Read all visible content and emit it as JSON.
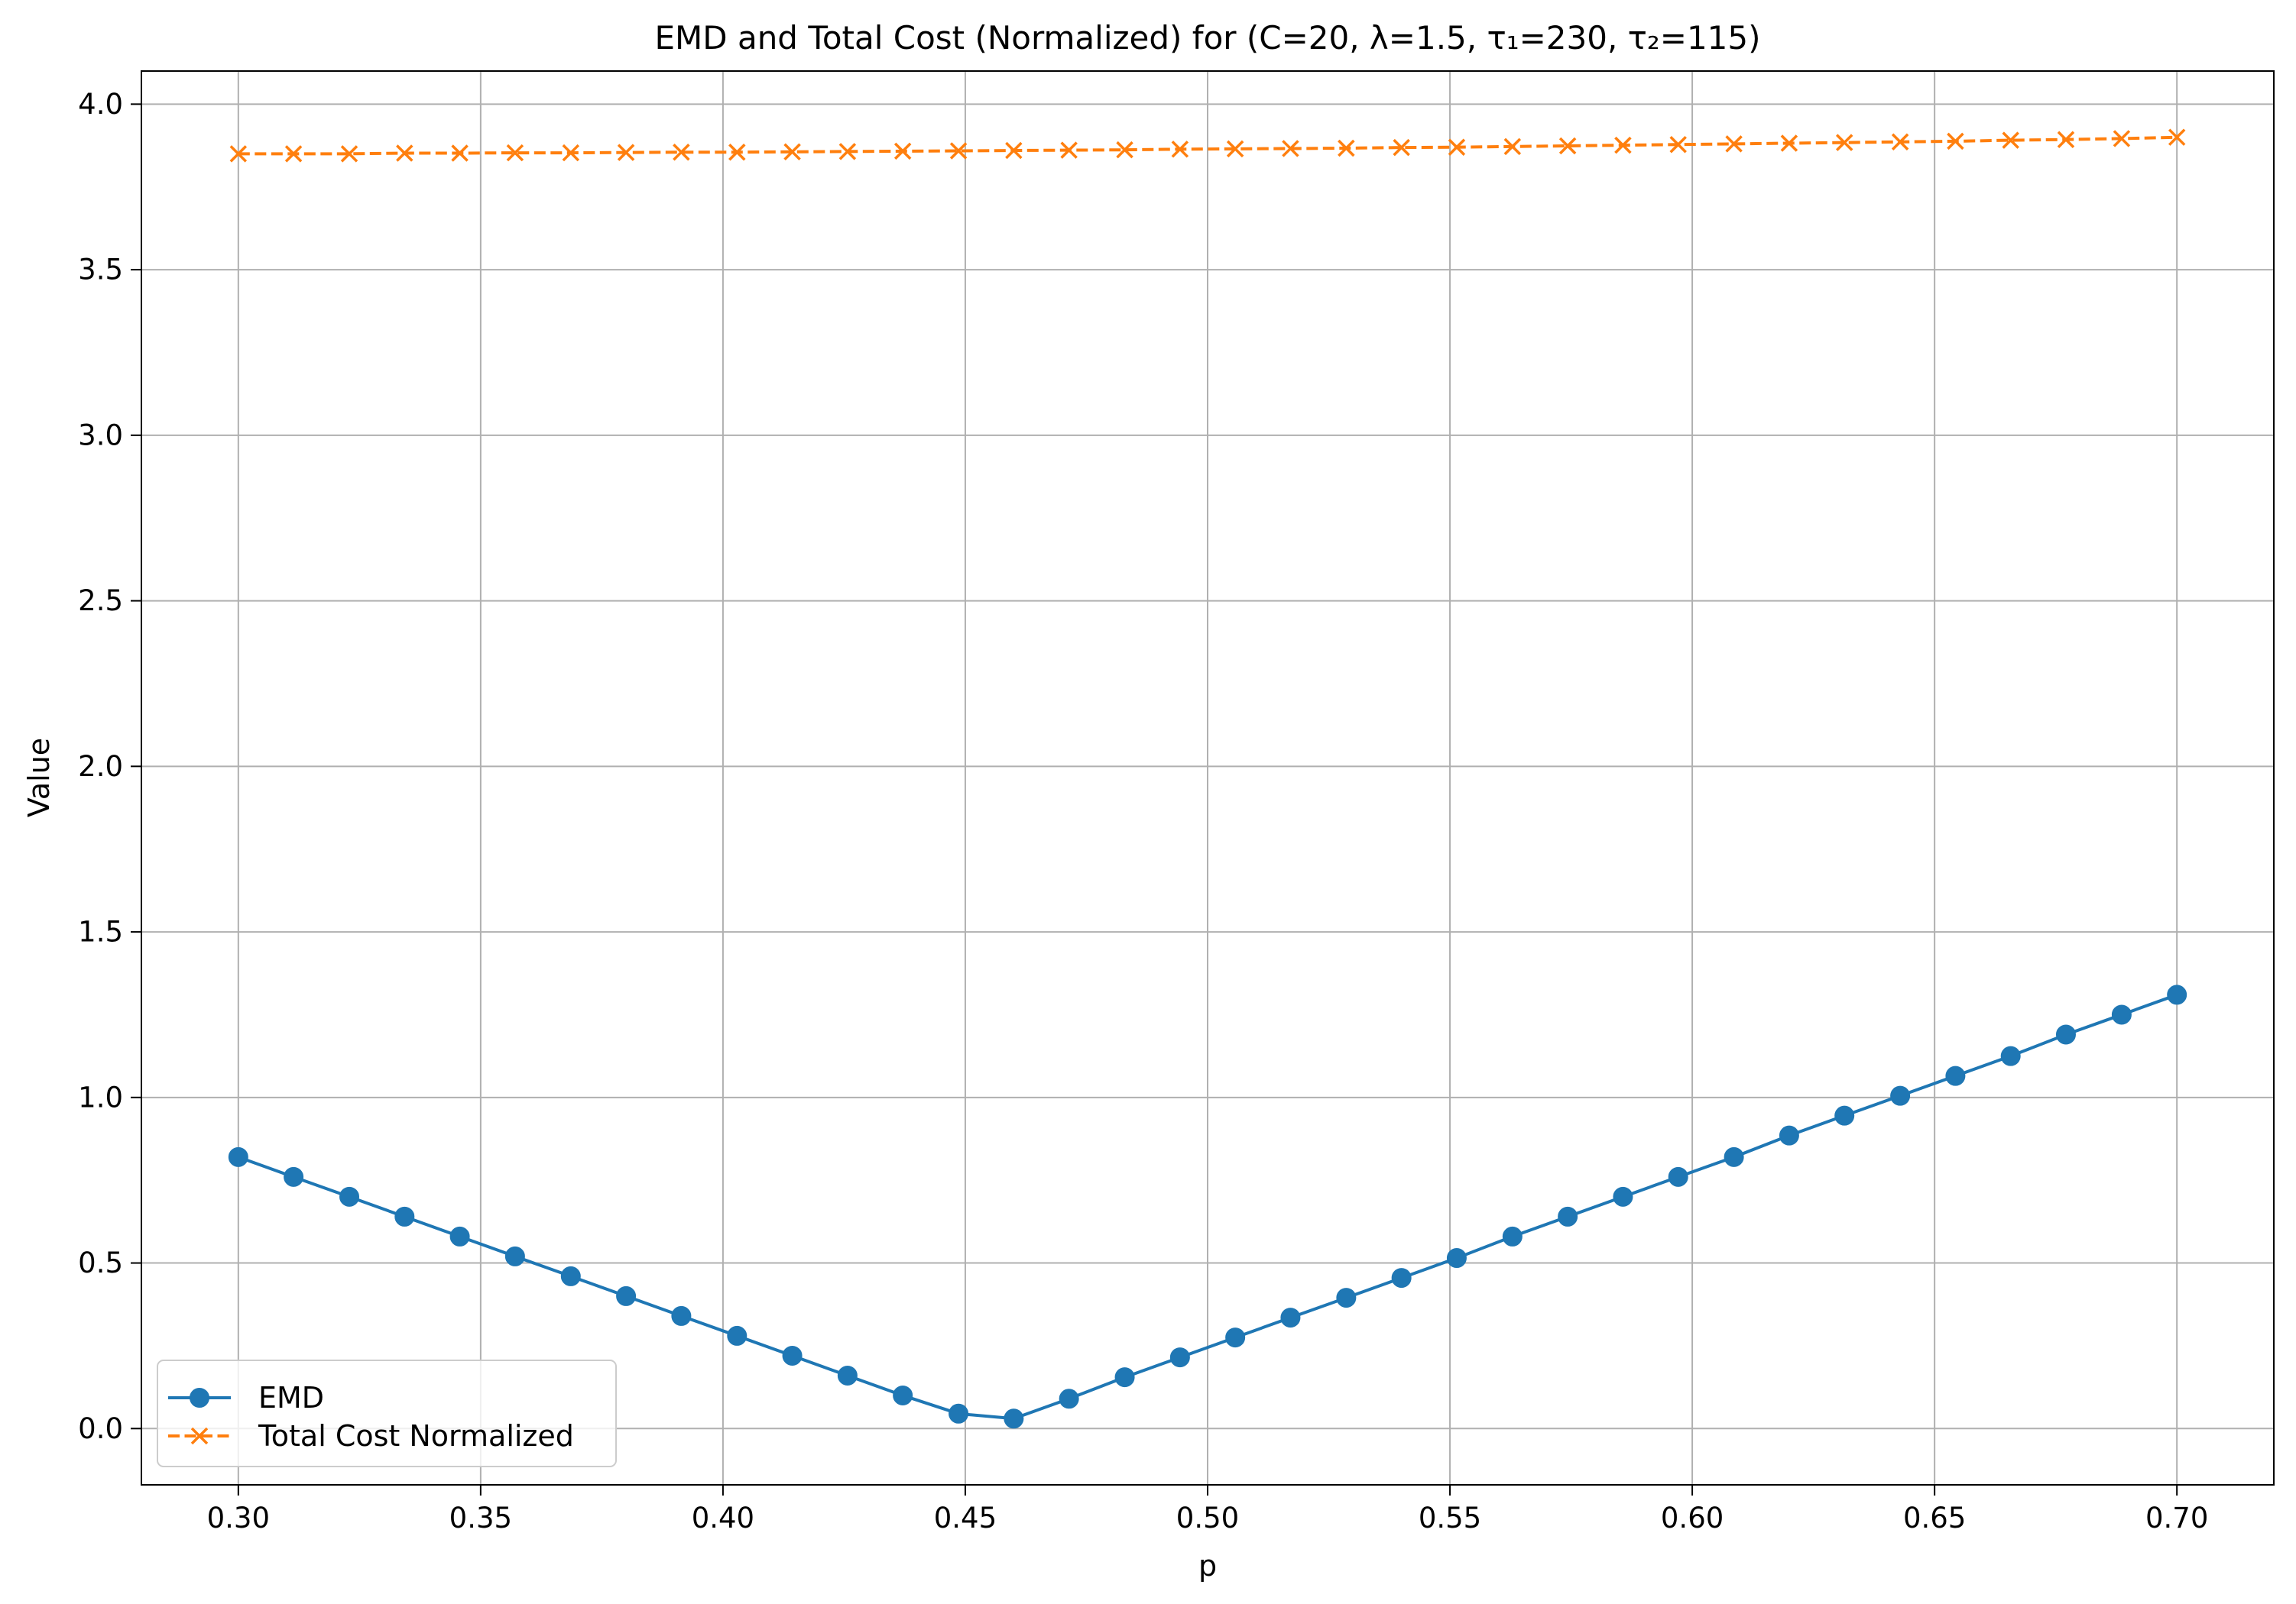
{
  "chart_data": {
    "type": "line",
    "title": "EMD and Total Cost (Normalized) for (C=20, λ=1.5, τ₁=230, τ₂=115)",
    "xlabel": "p",
    "ylabel": "Value",
    "xlim": [
      0.28,
      0.72
    ],
    "ylim": [
      -0.17,
      4.1
    ],
    "xticks": [
      0.3,
      0.35,
      0.4,
      0.45,
      0.5,
      0.55,
      0.6,
      0.65,
      0.7
    ],
    "xtick_labels": [
      "0.30",
      "0.35",
      "0.40",
      "0.45",
      "0.50",
      "0.55",
      "0.60",
      "0.65",
      "0.70"
    ],
    "yticks": [
      0.0,
      0.5,
      1.0,
      1.5,
      2.0,
      2.5,
      3.0,
      3.5,
      4.0
    ],
    "ytick_labels": [
      "0.0",
      "0.5",
      "1.0",
      "1.5",
      "2.0",
      "2.5",
      "3.0",
      "3.5",
      "4.0"
    ],
    "grid": true,
    "legend_position": "lower-left",
    "x": [
      0.3,
      0.3114,
      0.3229,
      0.3343,
      0.3457,
      0.3571,
      0.3686,
      0.38,
      0.3914,
      0.4029,
      0.4143,
      0.4257,
      0.4371,
      0.4486,
      0.46,
      0.4714,
      0.4829,
      0.4943,
      0.5057,
      0.5171,
      0.5286,
      0.54,
      0.5514,
      0.5629,
      0.5743,
      0.5857,
      0.5971,
      0.6086,
      0.62,
      0.6314,
      0.6429,
      0.6543,
      0.6657,
      0.6771,
      0.6886,
      0.7
    ],
    "series": [
      {
        "name": "EMD",
        "color": "#1f77b4",
        "line_style": "solid",
        "marker": "circle",
        "values": [
          0.82,
          0.76,
          0.7,
          0.64,
          0.58,
          0.52,
          0.46,
          0.4,
          0.34,
          0.28,
          0.22,
          0.16,
          0.1,
          0.045,
          0.03,
          0.09,
          0.155,
          0.215,
          0.275,
          0.335,
          0.395,
          0.455,
          0.515,
          0.58,
          0.64,
          0.7,
          0.76,
          0.82,
          0.885,
          0.945,
          1.005,
          1.065,
          1.125,
          1.19,
          1.25,
          1.31
        ]
      },
      {
        "name": "Total Cost Normalized",
        "color": "#ff7f0e",
        "line_style": "dashed",
        "marker": "x",
        "values": [
          3.85,
          3.85,
          3.85,
          3.852,
          3.852,
          3.853,
          3.853,
          3.854,
          3.855,
          3.855,
          3.856,
          3.857,
          3.858,
          3.859,
          3.86,
          3.861,
          3.862,
          3.864,
          3.865,
          3.866,
          3.867,
          3.869,
          3.87,
          3.872,
          3.874,
          3.876,
          3.878,
          3.88,
          3.882,
          3.884,
          3.886,
          3.888,
          3.891,
          3.893,
          3.896,
          3.9
        ]
      }
    ]
  }
}
